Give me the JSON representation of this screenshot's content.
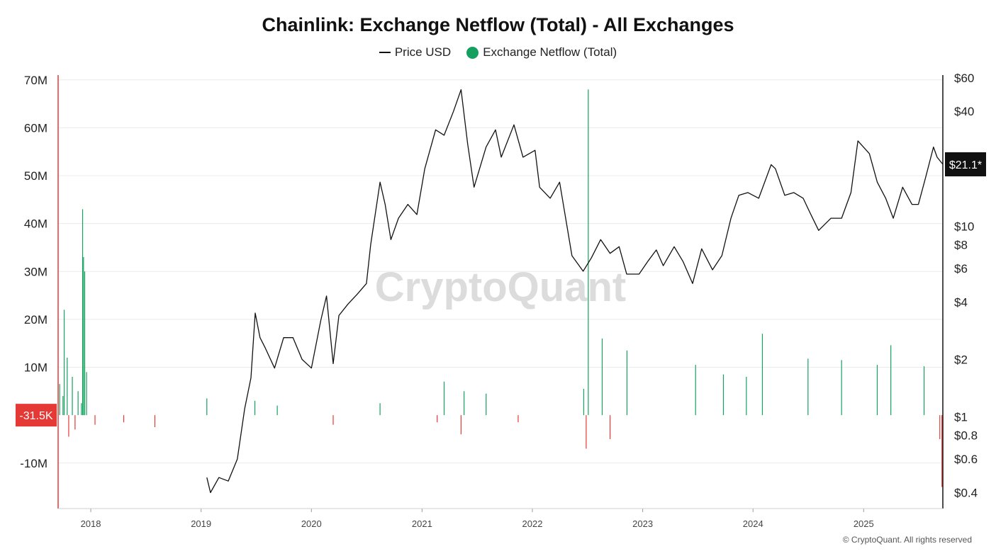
{
  "title": "Chainlink: Exchange Netflow (Total) - All Exchanges",
  "legend": [
    {
      "label": "Price USD",
      "color": "#111111",
      "kind": "line"
    },
    {
      "label": "Exchange Netflow (Total)",
      "color": "#16a05f",
      "kind": "dot"
    }
  ],
  "watermark": "CryptoQuant",
  "copyright": "© CryptoQuant. All rights reserved",
  "colors": {
    "positive": "#16a05f",
    "negative": "#e53935",
    "price": "#111111",
    "grid": "#ececec"
  },
  "chart_data": {
    "type": "bar",
    "x_ticks": [
      "2018",
      "2019",
      "2020",
      "2021",
      "2022",
      "2023",
      "2024",
      "2025"
    ],
    "x_range": [
      "2017-09-15",
      "2025-09-20"
    ],
    "left_axis": {
      "label": "",
      "ticks": [
        "70M",
        "60M",
        "50M",
        "40M",
        "30M",
        "20M",
        "10M",
        "-10M"
      ],
      "range": [
        -19500000,
        71000000
      ]
    },
    "right_axis": {
      "label": "",
      "scale": "log",
      "ticks": [
        "$60",
        "$40",
        "$10",
        "$8",
        "$6",
        "$4",
        "$2",
        "$1",
        "$0.8",
        "$0.6",
        "$0.4"
      ],
      "range": [
        0.33,
        62
      ]
    },
    "current_netflow_label": "-31.5K",
    "current_price_label": "$21.1*",
    "grid": true,
    "legend_position": "top-center",
    "series": [
      {
        "name": "Price USD",
        "type": "line",
        "axis": "right",
        "points": [
          [
            "2019-01-20",
            0.48
          ],
          [
            "2019-02-01",
            0.4
          ],
          [
            "2019-03-01",
            0.48
          ],
          [
            "2019-04-01",
            0.46
          ],
          [
            "2019-05-01",
            0.6
          ],
          [
            "2019-05-25",
            1.1
          ],
          [
            "2019-06-15",
            1.6
          ],
          [
            "2019-06-29",
            3.5
          ],
          [
            "2019-07-15",
            2.6
          ],
          [
            "2019-08-01",
            2.3
          ],
          [
            "2019-09-01",
            1.8
          ],
          [
            "2019-10-01",
            2.6
          ],
          [
            "2019-11-01",
            2.6
          ],
          [
            "2019-12-01",
            2.0
          ],
          [
            "2020-01-01",
            1.8
          ],
          [
            "2020-02-01",
            3.2
          ],
          [
            "2020-02-20",
            4.3
          ],
          [
            "2020-03-13",
            1.9
          ],
          [
            "2020-04-01",
            3.4
          ],
          [
            "2020-05-01",
            3.9
          ],
          [
            "2020-06-01",
            4.4
          ],
          [
            "2020-07-01",
            5.0
          ],
          [
            "2020-07-15",
            8.0
          ],
          [
            "2020-08-15",
            17.0
          ],
          [
            "2020-09-01",
            13.0
          ],
          [
            "2020-09-20",
            8.5
          ],
          [
            "2020-10-15",
            11.0
          ],
          [
            "2020-11-15",
            13.0
          ],
          [
            "2020-12-15",
            11.5
          ],
          [
            "2021-01-10",
            20.0
          ],
          [
            "2021-02-15",
            32.0
          ],
          [
            "2021-03-15",
            30.0
          ],
          [
            "2021-04-15",
            40.0
          ],
          [
            "2021-05-10",
            52.0
          ],
          [
            "2021-06-01",
            27.0
          ],
          [
            "2021-06-22",
            16.0
          ],
          [
            "2021-08-01",
            26.0
          ],
          [
            "2021-09-01",
            32.0
          ],
          [
            "2021-09-20",
            23.0
          ],
          [
            "2021-11-01",
            34.0
          ],
          [
            "2021-12-01",
            23.0
          ],
          [
            "2022-01-10",
            25.0
          ],
          [
            "2022-01-25",
            16.0
          ],
          [
            "2022-03-01",
            14.0
          ],
          [
            "2022-04-01",
            17.0
          ],
          [
            "2022-05-12",
            7.0
          ],
          [
            "2022-06-18",
            5.8
          ],
          [
            "2022-07-15",
            6.8
          ],
          [
            "2022-08-15",
            8.5
          ],
          [
            "2022-09-15",
            7.2
          ],
          [
            "2022-10-15",
            7.8
          ],
          [
            "2022-11-09",
            5.6
          ],
          [
            "2022-12-20",
            5.6
          ],
          [
            "2023-01-20",
            6.6
          ],
          [
            "2023-02-15",
            7.5
          ],
          [
            "2023-03-10",
            6.2
          ],
          [
            "2023-04-15",
            7.8
          ],
          [
            "2023-05-15",
            6.5
          ],
          [
            "2023-06-15",
            5.0
          ],
          [
            "2023-07-15",
            7.6
          ],
          [
            "2023-08-20",
            5.9
          ],
          [
            "2023-09-20",
            7.0
          ],
          [
            "2023-10-20",
            11.0
          ],
          [
            "2023-11-15",
            14.5
          ],
          [
            "2023-12-15",
            15.0
          ],
          [
            "2024-01-20",
            14.0
          ],
          [
            "2024-03-01",
            21.0
          ],
          [
            "2024-03-15",
            20.0
          ],
          [
            "2024-04-15",
            14.5
          ],
          [
            "2024-05-15",
            15.0
          ],
          [
            "2024-06-15",
            14.0
          ],
          [
            "2024-07-05",
            12.0
          ],
          [
            "2024-08-05",
            9.5
          ],
          [
            "2024-09-15",
            11.0
          ],
          [
            "2024-10-20",
            11.0
          ],
          [
            "2024-11-20",
            15.0
          ],
          [
            "2024-12-13",
            28.0
          ],
          [
            "2025-01-20",
            24.0
          ],
          [
            "2025-02-15",
            17.0
          ],
          [
            "2025-03-15",
            14.0
          ],
          [
            "2025-04-09",
            11.0
          ],
          [
            "2025-05-10",
            16.0
          ],
          [
            "2025-06-10",
            13.0
          ],
          [
            "2025-07-01",
            13.0
          ],
          [
            "2025-07-25",
            18.0
          ],
          [
            "2025-08-20",
            26.0
          ],
          [
            "2025-09-01",
            23.0
          ],
          [
            "2025-09-20",
            21.1
          ]
        ]
      },
      {
        "name": "Exchange Netflow (Total)",
        "type": "bar",
        "axis": "left",
        "points": [
          [
            "2017-09-20",
            6500000
          ],
          [
            "2017-10-01",
            4000000
          ],
          [
            "2017-10-05",
            22000000
          ],
          [
            "2017-10-15",
            12000000
          ],
          [
            "2017-11-01",
            8000000
          ],
          [
            "2017-11-20",
            5000000
          ],
          [
            "2017-12-01",
            2500000
          ],
          [
            "2017-12-05",
            43000000
          ],
          [
            "2017-12-08",
            33000000
          ],
          [
            "2017-12-12",
            30000000
          ],
          [
            "2017-12-18",
            9000000
          ],
          [
            "2017-10-20",
            -4500000
          ],
          [
            "2017-11-10",
            -3000000
          ],
          [
            "2018-01-15",
            -2000000
          ],
          [
            "2018-04-20",
            -1500000
          ],
          [
            "2018-08-01",
            -2500000
          ],
          [
            "2019-01-20",
            3500000
          ],
          [
            "2019-06-28",
            3000000
          ],
          [
            "2019-09-10",
            2000000
          ],
          [
            "2020-08-15",
            2500000
          ],
          [
            "2020-03-13",
            -2000000
          ],
          [
            "2021-02-20",
            -1500000
          ],
          [
            "2021-03-15",
            7000000
          ],
          [
            "2021-05-10",
            -4000000
          ],
          [
            "2021-05-20",
            5000000
          ],
          [
            "2021-08-01",
            4500000
          ],
          [
            "2021-11-15",
            -1500000
          ],
          [
            "2022-06-20",
            5500000
          ],
          [
            "2022-06-28",
            -7000000
          ],
          [
            "2022-07-05",
            68000000
          ],
          [
            "2022-08-20",
            16000000
          ],
          [
            "2022-09-15",
            -5000000
          ],
          [
            "2022-11-10",
            13500000
          ],
          [
            "2023-06-25",
            10500000
          ],
          [
            "2023-09-25",
            8500000
          ],
          [
            "2023-12-10",
            8000000
          ],
          [
            "2024-02-01",
            17000000
          ],
          [
            "2024-07-01",
            11800000
          ],
          [
            "2024-10-20",
            11500000
          ],
          [
            "2025-02-15",
            10500000
          ],
          [
            "2025-04-01",
            14600000
          ],
          [
            "2025-07-20",
            10200000
          ],
          [
            "2025-09-10",
            -5000000
          ],
          [
            "2025-09-17",
            -15000000
          ],
          [
            "2025-09-20",
            -31500
          ]
        ]
      }
    ]
  }
}
